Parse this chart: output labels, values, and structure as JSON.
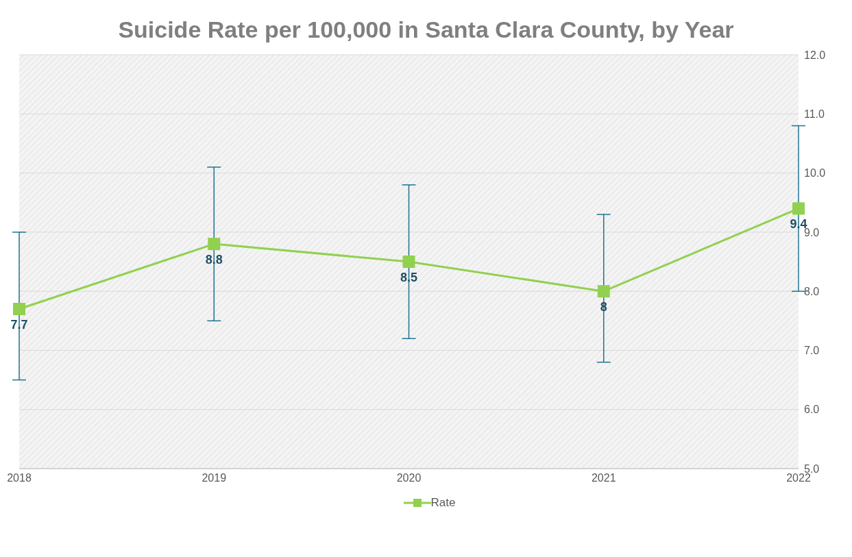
{
  "chart_data": {
    "type": "line",
    "title": "Suicide Rate per 100,000 in Santa Clara County, by Year",
    "categories": [
      "2018",
      "2019",
      "2020",
      "2021",
      "2022"
    ],
    "series": [
      {
        "name": "Rate",
        "color": "#92d050",
        "values": [
          7.7,
          8.8,
          8.5,
          8,
          9.4
        ],
        "errors": [
          [
            6.5,
            9.0
          ],
          [
            7.5,
            10.1
          ],
          [
            7.2,
            9.8
          ],
          [
            6.8,
            9.3
          ],
          [
            8.0,
            10.8
          ]
        ]
      }
    ],
    "ylim": [
      5,
      12
    ],
    "yticks": [
      {
        "value": 5,
        "label": "5.0"
      },
      {
        "value": 6,
        "label": "6.0"
      },
      {
        "value": 7,
        "label": "7.0"
      },
      {
        "value": 8,
        "label": "8.0"
      },
      {
        "value": 9,
        "label": "9.0"
      },
      {
        "value": 10,
        "label": "10.0"
      },
      {
        "value": 11,
        "label": "11.0"
      },
      {
        "value": 12,
        "label": "12.0"
      }
    ],
    "grid": "y",
    "legend": "bottom",
    "marker": "square",
    "line_style": "solid",
    "data_labels": true
  }
}
